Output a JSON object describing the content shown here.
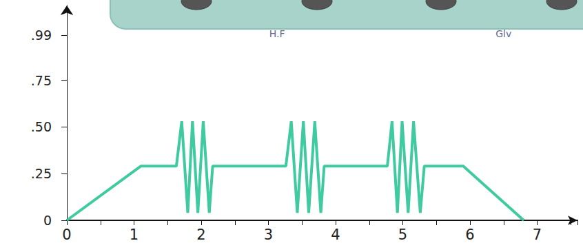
{
  "chart_data": {
    "type": "line",
    "x": [
      0,
      1.1,
      1.63,
      1.71,
      1.8,
      1.87,
      1.95,
      2.03,
      2.12,
      2.17,
      3.26,
      3.34,
      3.43,
      3.52,
      3.6,
      3.69,
      3.78,
      3.83,
      4.77,
      4.84,
      4.92,
      4.99,
      5.08,
      5.16,
      5.26,
      5.32,
      5.9,
      6.8
    ],
    "series": [
      {
        "color": "#3fcaa0",
        "values": [
          0,
          0.29,
          0.29,
          0.53,
          0.04,
          0.53,
          0.04,
          0.53,
          0.04,
          0.29,
          0.29,
          0.53,
          0.04,
          0.53,
          0.04,
          0.53,
          0.04,
          0.29,
          0.29,
          0.53,
          0.04,
          0.53,
          0.04,
          0.53,
          0.04,
          0.29,
          0.29,
          0
        ]
      }
    ],
    "annotations": [
      {
        "text": "H.F",
        "x": 3.13,
        "y": 1.0
      },
      {
        "text": "Glv",
        "x": 6.5,
        "y": 1.0
      }
    ],
    "xlim": [
      0,
      7.6
    ],
    "xticks": [
      0,
      1,
      2,
      3,
      4,
      5,
      6,
      7
    ],
    "ylim": [
      0,
      1.15
    ],
    "yticks": [
      0,
      {
        "value": 0.25,
        "label": ".25"
      },
      {
        "value": 0.5,
        "label": ".50"
      },
      {
        "value": 0.75,
        "label": ".75"
      },
      {
        "value": 0.99,
        "label": ".99"
      }
    ],
    "grid": false
  }
}
